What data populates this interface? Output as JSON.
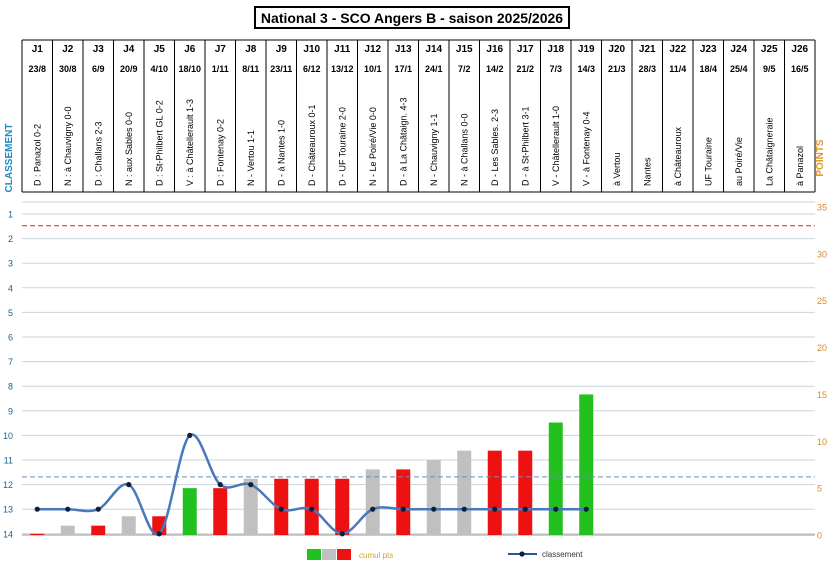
{
  "title": "National 3 - SCO Angers B - saison 2025/2026",
  "chart_data": {
    "type": "bar",
    "left_axis": {
      "label": "CLASSEMENT",
      "min": 1,
      "max": 14,
      "ticks": [
        1,
        2,
        3,
        4,
        5,
        6,
        7,
        8,
        9,
        10,
        11,
        12,
        13,
        14
      ]
    },
    "right_axis": {
      "label": "POINTS",
      "min": 0,
      "max": 35,
      "ticks": [
        0,
        5,
        10,
        15,
        20,
        25,
        30,
        35
      ]
    },
    "reference_lines": [
      {
        "axis": "right",
        "value": 33,
        "style": "dashed",
        "color": "#d62728"
      },
      {
        "axis": "right",
        "value": 6.2,
        "style": "dashed",
        "color": "#6d8fb0"
      }
    ],
    "matchdays": [
      {
        "j": "J1",
        "date": "23/8",
        "match": "D : Panazol 0-2",
        "result": "D",
        "points": 0,
        "rank": 13
      },
      {
        "j": "J2",
        "date": "30/8",
        "match": "N : à Chauvigny 0-0",
        "result": "N",
        "points": 1,
        "rank": 13
      },
      {
        "j": "J3",
        "date": "6/9",
        "match": "D : Challans 2-3",
        "result": "D",
        "points": 1,
        "rank": 13
      },
      {
        "j": "J4",
        "date": "20/9",
        "match": "N : aux Sables 0-0",
        "result": "N",
        "points": 2,
        "rank": 12
      },
      {
        "j": "J5",
        "date": "4/10",
        "match": "D : St-Philbert GL 0-2",
        "result": "D",
        "points": 2,
        "rank": 14
      },
      {
        "j": "J6",
        "date": "18/10",
        "match": "V : à Châtellerault 1-3",
        "result": "V",
        "points": 5,
        "rank": 10
      },
      {
        "j": "J7",
        "date": "1/11",
        "match": "D : Fontenay 0-2",
        "result": "D",
        "points": 5,
        "rank": 12
      },
      {
        "j": "J8",
        "date": "8/11",
        "match": "N - Vertou 1-1",
        "result": "N",
        "points": 6,
        "rank": 12
      },
      {
        "j": "J9",
        "date": "23/11",
        "match": "D - à Nantes 1-0",
        "result": "D",
        "points": 6,
        "rank": 13
      },
      {
        "j": "J10",
        "date": "6/12",
        "match": "D - Châteauroux 0-1",
        "result": "D",
        "points": 6,
        "rank": 13
      },
      {
        "j": "J11",
        "date": "13/12",
        "match": "D - UF Touraine 2-0",
        "result": "D",
        "points": 6,
        "rank": 14
      },
      {
        "j": "J12",
        "date": "10/1",
        "match": "N - Le Poiré/Vie 0-0",
        "result": "N",
        "points": 7,
        "rank": 13
      },
      {
        "j": "J13",
        "date": "17/1",
        "match": "D - à La Châtaign. 4-3",
        "result": "D",
        "points": 7,
        "rank": 13
      },
      {
        "j": "J14",
        "date": "24/1",
        "match": "N - Chauvigny 1-1",
        "result": "N",
        "points": 8,
        "rank": 13
      },
      {
        "j": "J15",
        "date": "7/2",
        "match": "N - à Challans 0-0",
        "result": "N",
        "points": 9,
        "rank": 13
      },
      {
        "j": "J16",
        "date": "14/2",
        "match": "D - Les Sables. 2-3",
        "result": "D",
        "points": 9,
        "rank": 13
      },
      {
        "j": "J17",
        "date": "21/2",
        "match": "D - à St-Philbert 3-1",
        "result": "D",
        "points": 9,
        "rank": 13
      },
      {
        "j": "J18",
        "date": "7/3",
        "match": "V - Châtellerault 1-0",
        "result": "V",
        "points": 12,
        "rank": 13
      },
      {
        "j": "J19",
        "date": "14/3",
        "match": "V - à Fontenay 0-4",
        "result": "V",
        "points": 15,
        "rank": 13
      },
      {
        "j": "J20",
        "date": "21/3",
        "match": "à Vertou",
        "result": "",
        "points": null,
        "rank": null
      },
      {
        "j": "J21",
        "date": "28/3",
        "match": "Nantes",
        "result": "",
        "points": null,
        "rank": null
      },
      {
        "j": "J22",
        "date": "11/4",
        "match": "à Châteauroux",
        "result": "",
        "points": null,
        "rank": null
      },
      {
        "j": "J23",
        "date": "18/4",
        "match": "UF Touraine",
        "result": "",
        "points": null,
        "rank": null
      },
      {
        "j": "J24",
        "date": "25/4",
        "match": "au Poiré/Vie",
        "result": "",
        "points": null,
        "rank": null
      },
      {
        "j": "J25",
        "date": "9/5",
        "match": "La Châtaigneraie",
        "result": "",
        "points": null,
        "rank": null
      },
      {
        "j": "J26",
        "date": "16/5",
        "match": "à Panazol",
        "result": "",
        "points": null,
        "rank": null
      }
    ],
    "result_colors": {
      "V": "#22c11f",
      "N": "#c0c0c0",
      "D": "#ee1111"
    },
    "line_color": "#4a78bd",
    "legend": [
      {
        "label": "cumul pts",
        "swatches": [
          "#22c11f",
          "#c0c0c0",
          "#ee1111"
        ]
      },
      {
        "label": "classement",
        "color": "#2a56a0"
      }
    ]
  }
}
